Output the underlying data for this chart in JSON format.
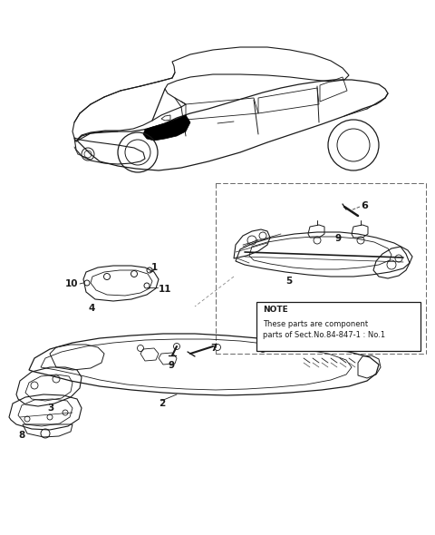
{
  "bg": "#ffffff",
  "lc": "#1a1a1a",
  "gray": "#888888",
  "fig_w": 4.8,
  "fig_h": 5.9,
  "note_lines": [
    "NOTE",
    "These parts are component",
    "parts of Sect.No.84-847-1 : No.1"
  ]
}
